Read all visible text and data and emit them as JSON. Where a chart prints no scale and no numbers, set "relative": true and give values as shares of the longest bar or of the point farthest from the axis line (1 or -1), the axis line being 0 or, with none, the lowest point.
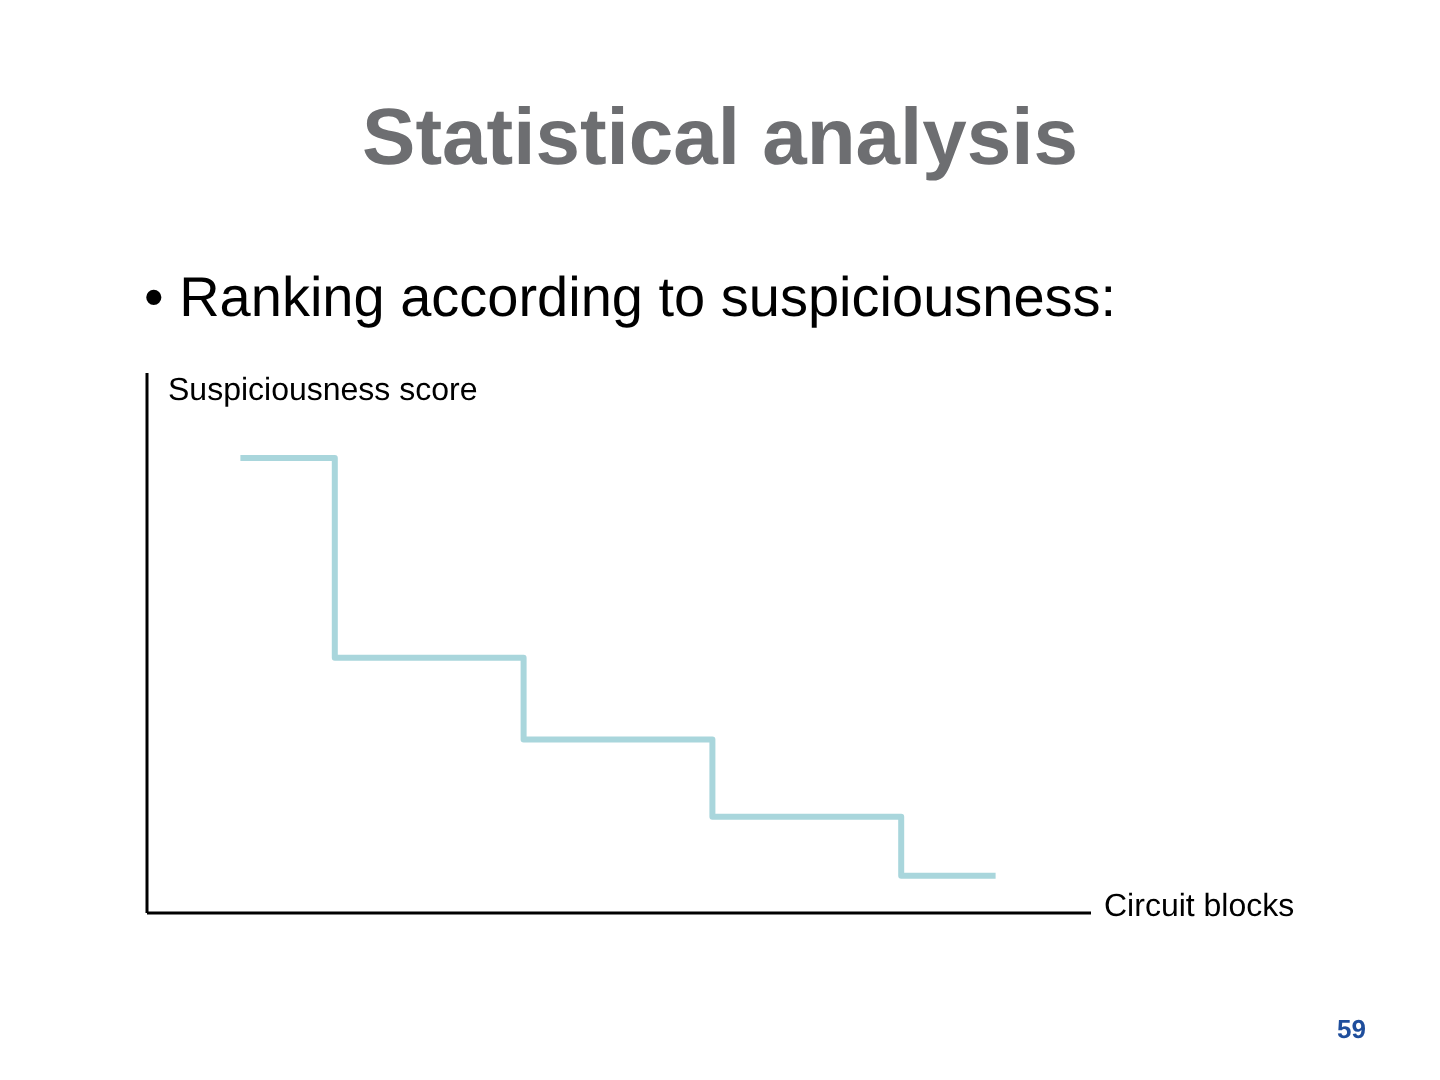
{
  "chart_data": {
    "type": "step",
    "title": "Statistical analysis",
    "subtitle": "• Ranking according to suspiciousness:",
    "xlabel": "Circuit blocks",
    "ylabel": "Suspiciousness score",
    "categories": [
      null,
      null,
      null,
      null,
      null
    ],
    "series": [
      {
        "color": "#a9d6dc",
        "values": [
          1,
          0.56,
          0.38,
          0.21,
          0.08
        ]
      }
    ],
    "relative": true,
    "tick_labels": false,
    "annotations": [
      "59"
    ]
  }
}
